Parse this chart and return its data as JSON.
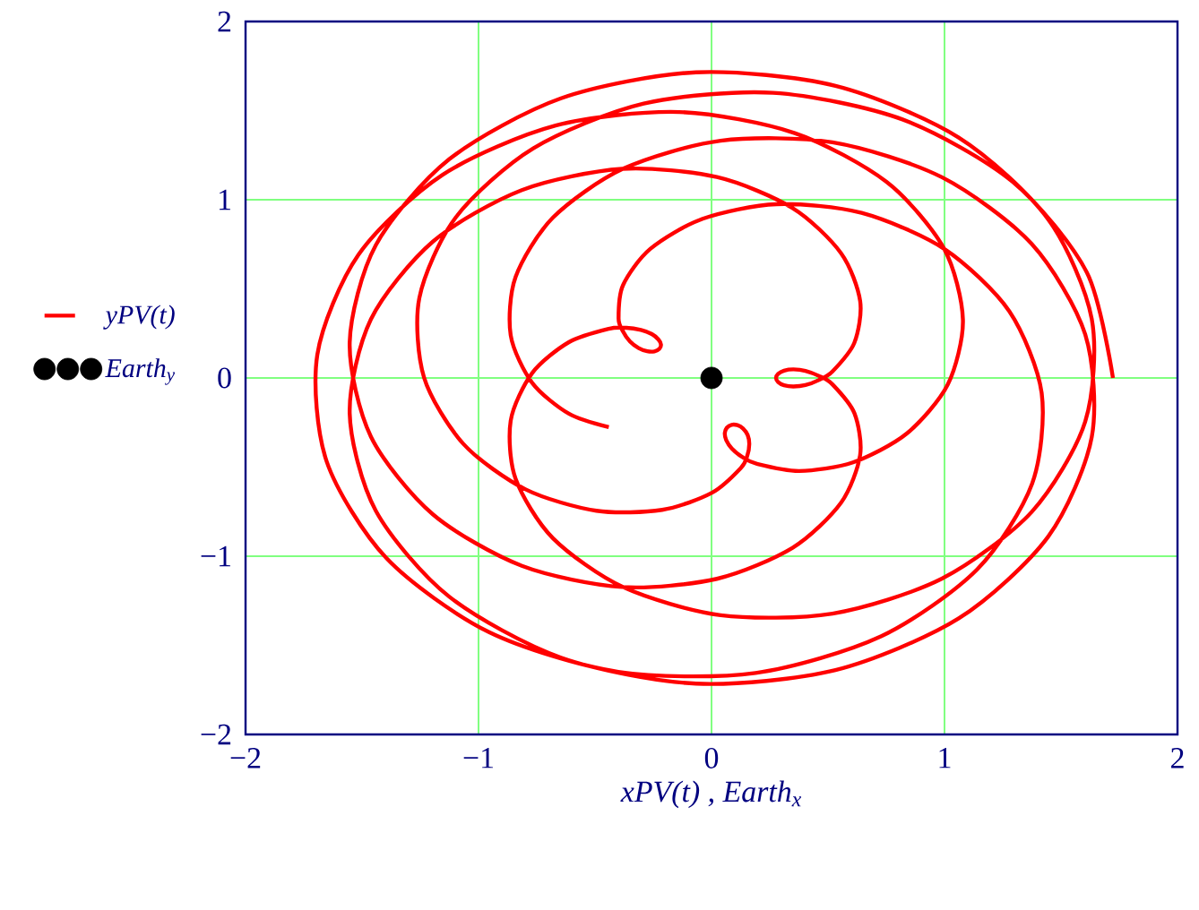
{
  "chart_data": {
    "type": "line",
    "xlabel": "xPV(t) , Earth$_{x}$",
    "xlim": [
      -2,
      2
    ],
    "ylim": [
      -2,
      2
    ],
    "xticks": [
      {
        "value": -2,
        "label": "−2"
      },
      {
        "value": -1,
        "label": "−1"
      },
      0,
      1,
      2
    ],
    "yticks": [
      {
        "value": -2,
        "label": "−2"
      },
      {
        "value": -1,
        "label": "−1"
      },
      0,
      1,
      2
    ],
    "grid": true,
    "legend": "left",
    "series": [
      {
        "name": "yPV(t)",
        "type": "line",
        "color": "#ff0000",
        "x": [
          1.723,
          1.611,
          1.293,
          0.82,
          0.264,
          -0.291,
          -0.765,
          -1.097,
          -1.254,
          -1.234,
          -1.065,
          -0.798,
          -0.494,
          -0.212,
          0.002,
          0.126,
          0.154,
          0.162,
          0.155,
          0.135,
          0.111,
          0.086,
          0.066,
          0.057,
          0.063,
          0.087,
          0.13,
          0.195,
          0.377,
          0.607,
          0.838,
          1.014,
          1.079,
          0.997,
          0.751,
          0.357,
          -0.138,
          -0.669,
          -1.154,
          -1.515,
          -1.692,
          -1.652,
          -1.394,
          -0.955,
          -0.4,
          0.189,
          0.727,
          1.14,
          1.376,
          1.417,
          1.278,
          1.0,
          0.644,
          0.279,
          -0.038,
          -0.263,
          -0.38,
          -0.399,
          -0.38,
          -0.35,
          -0.313,
          -0.276,
          -0.245,
          -0.224,
          -0.217,
          -0.228,
          -0.256,
          -0.303,
          -0.365,
          -0.441,
          -0.612,
          -0.77,
          -0.862,
          -0.841,
          -0.681,
          -0.379,
          0.039,
          0.519,
          0.989,
          1.374,
          1.604,
          1.632,
          1.445,
          1.061,
          0.532,
          -0.066,
          -0.646,
          -1.126,
          -1.441,
          -1.553,
          -1.462,
          -1.196,
          -0.814,
          -0.384,
          0.023,
          0.348,
          0.556,
          0.638,
          0.613,
          0.519,
          0.46,
          0.403,
          0.352,
          0.311,
          0.286,
          0.277,
          0.286,
          0.311,
          0.352,
          0.403,
          0.46,
          0.519,
          0.613,
          0.638,
          0.556,
          0.348,
          0.023,
          -0.384,
          -0.814,
          -1.196,
          -1.462,
          -1.553,
          -1.441,
          -1.126,
          -0.646,
          -0.066,
          0.532,
          1.061,
          1.445,
          1.632,
          1.604,
          1.374,
          0.989,
          0.519,
          0.039,
          -0.379,
          -0.681,
          -0.841,
          -0.862,
          -0.77,
          -0.612,
          -0.441
        ],
        "values": [
          0,
          0.592,
          1.1,
          1.45,
          1.6,
          1.539,
          1.288,
          0.902,
          0.449,
          0.003,
          -0.37,
          -0.625,
          -0.745,
          -0.74,
          -0.644,
          -0.505,
          -0.434,
          -0.371,
          -0.32,
          -0.283,
          -0.265,
          -0.263,
          -0.279,
          -0.309,
          -0.349,
          -0.396,
          -0.442,
          -0.482,
          -0.522,
          -0.474,
          -0.312,
          -0.037,
          0.327,
          0.728,
          1.1,
          1.374,
          1.492,
          1.416,
          1.14,
          0.692,
          0.13,
          -0.468,
          -1.013,
          -1.426,
          -1.649,
          -1.655,
          -1.45,
          -1.074,
          -0.593,
          -0.085,
          0.374,
          0.723,
          0.926,
          0.975,
          0.893,
          0.724,
          0.52,
          0.334,
          0.261,
          0.205,
          0.168,
          0.15,
          0.149,
          0.163,
          0.187,
          0.216,
          0.246,
          0.269,
          0.281,
          0.276,
          0.201,
          0.027,
          -0.24,
          -0.566,
          -0.899,
          -1.174,
          -1.331,
          -1.322,
          -1.126,
          -0.752,
          -0.244,
          0.331,
          0.89,
          1.349,
          1.639,
          1.715,
          1.569,
          1.227,
          0.745,
          0.199,
          -0.329,
          -0.765,
          -1.054,
          -1.173,
          -1.127,
          -0.953,
          -0.7,
          -0.431,
          -0.197,
          -0.036,
          0.012,
          0.04,
          0.048,
          0.041,
          0.023,
          0,
          -0.023,
          -0.041,
          -0.048,
          -0.04,
          -0.012,
          0.036,
          0.197,
          0.431,
          0.7,
          0.953,
          1.127,
          1.173,
          1.054,
          0.765,
          0.329,
          -0.199,
          -0.745,
          -1.227,
          -1.569,
          -1.715,
          -1.639,
          -1.349,
          -0.89,
          -0.331,
          0.244,
          0.752,
          1.126,
          1.322,
          1.331,
          1.174,
          0.899,
          0.566,
          0.24,
          -0.027,
          -0.201,
          -0.276
        ]
      },
      {
        "name": "Earth$_{y}$",
        "type": "scatter",
        "color": "#000000",
        "marker": "circle",
        "x": [
          0
        ],
        "values": [
          0
        ]
      }
    ]
  }
}
